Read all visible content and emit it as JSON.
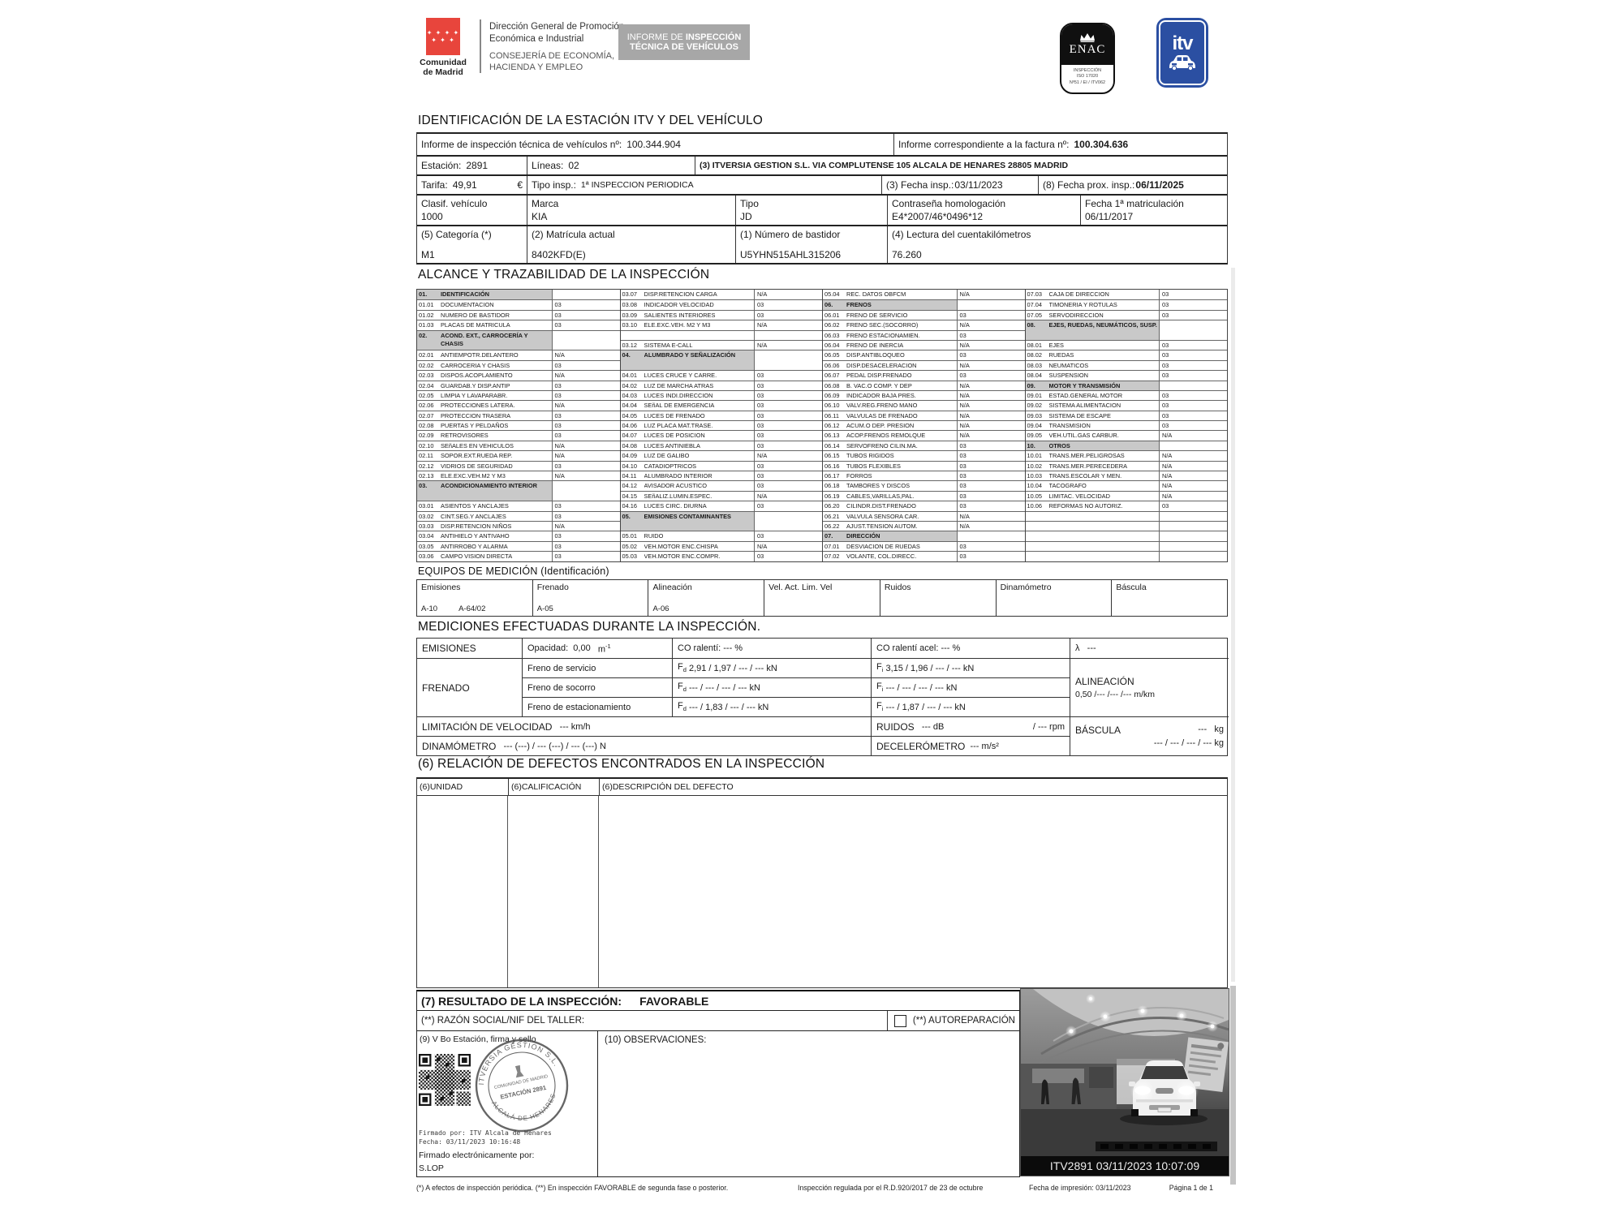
{
  "colors": {
    "accent_red": "#e8453c",
    "itv_blue": "#2b4fa2",
    "banner_gray": "#a7a7a7",
    "header_cell_gray": "#c9c9c9",
    "photo_caption_bg": "#0b0b0b"
  },
  "header": {
    "region_name_1": "Comunidad",
    "region_name_2": "de Madrid",
    "stars_row1": "✦ ✦ ✦ ✦",
    "stars_row2": "✦ ✦ ✦",
    "org_line1": "Dirección General de Promoción",
    "org_line2": "Económica e Industrial",
    "org_line3": "CONSEJERÍA DE ECONOMÍA,",
    "org_line4": "HACIENDA Y EMPLEO",
    "banner_l1a": "INFORME DE ",
    "banner_l1b": "INSPECCIÓN",
    "banner_l2": "TÉCNICA DE VEHÍCULOS",
    "enac_name": "ENAC",
    "enac_sub1": "INSPECCIÓN",
    "enac_sub2": "ISO 17020",
    "enac_sub3": "Nº51 / EI / ITV062",
    "itv_label": "itv"
  },
  "identificacion": {
    "title": "IDENTIFICACIÓN DE LA ESTACIÓN ITV Y DEL VEHÍCULO",
    "informe_label": "Informe de inspección técnica de vehículos nº:",
    "informe_value": "100.344.904",
    "factura_label": "Informe correspondiente a la factura nº:",
    "factura_value": "100.304.636",
    "estacion_label": "Estación:",
    "estacion_value": "2891",
    "lineas_label": "Líneas:",
    "lineas_value": "02",
    "itv_line": "(3) ITVERSIA GESTION S.L. VIA COMPLUTENSE 105 ALCALA DE HENARES 28805 MADRID",
    "tarifa_label": "Tarifa:",
    "tarifa_value": "49,91",
    "tarifa_currency": "€",
    "tipo_label": "Tipo insp.:",
    "tipo_value": "1ª INSPECCION PERIODICA",
    "fecha_label": "(3) Fecha insp.:",
    "fecha_value": "03/11/2023",
    "fecha_prox_label": "(8) Fecha prox. insp.:",
    "fecha_prox_value": "06/11/2025",
    "clasif_label": "Clasif. vehículo",
    "clasif_value": "1000",
    "marca_label": "Marca",
    "marca_value": "KIA",
    "tipo_veh_label": "Tipo",
    "tipo_veh_value": "JD",
    "contrasena_label": "Contraseña homologación",
    "contrasena_value": "E4*2007/46*0496*12",
    "matricula1_label": "Fecha 1ª matriculación",
    "matricula1_value": "06/11/2017",
    "categoria_label": "(5) Categoría (*)",
    "categoria_value": "M1",
    "matricula_label": "(2) Matrícula actual",
    "matricula_value": "8402KFD(E)",
    "bastidor_label": "(1) Número de bastidor",
    "bastidor_value": "U5YHN515AHL315206",
    "cuentakm_label": "(4) Lectura del cuentakilómetros",
    "cuentakm_value": "76.260"
  },
  "alcance": {
    "title": "ALCANCE Y TRAZABILIDAD DE LA INSPECCIÓN",
    "columns": [
      [
        {
          "c": "01.",
          "l": "IDENTIFICACIÓN",
          "h": true
        },
        {
          "c": "01.01",
          "l": "DOCUMENTACION",
          "v": "03"
        },
        {
          "c": "01.02",
          "l": "NUMERO DE BASTIDOR",
          "v": "03"
        },
        {
          "c": "01.03",
          "l": "PLACAS DE MATRICULA",
          "v": "03"
        },
        {
          "c": "02.",
          "l": "ACOND. EXT., CARROCERÍA Y CHASIS",
          "h": true,
          "tall": true
        },
        {
          "c": "02.01",
          "l": "ANTIEMPOTR.DELANTERO",
          "v": "N/A"
        },
        {
          "c": "02.02",
          "l": "CARROCERIA Y CHASIS",
          "v": "03"
        },
        {
          "c": "02.03",
          "l": "DISPOS.ACOPLAMIENTO",
          "v": "N/A"
        },
        {
          "c": "02.04",
          "l": "GUARDAB.Y DISP.ANTIP",
          "v": "03"
        },
        {
          "c": "02.05",
          "l": "LIMPIA Y LAVAPARABR.",
          "v": "03"
        },
        {
          "c": "02.06",
          "l": "PROTECCIONES LATERA.",
          "v": "N/A"
        },
        {
          "c": "02.07",
          "l": "PROTECCION TRASERA",
          "v": "03"
        },
        {
          "c": "02.08",
          "l": "PUERTAS Y PELDAÑOS",
          "v": "03"
        },
        {
          "c": "02.09",
          "l": "RETROVISORES",
          "v": "03"
        },
        {
          "c": "02.10",
          "l": "SEñALES EN VEHICULOS",
          "v": "N/A"
        },
        {
          "c": "02.11",
          "l": "SOPOR.EXT.RUEDA REP.",
          "v": "N/A"
        },
        {
          "c": "02.12",
          "l": "VIDRIOS DE SEGURIDAD",
          "v": "03"
        },
        {
          "c": "02.13",
          "l": "ELE.EXC.VEH.M2 Y M3",
          "v": "N/A"
        },
        {
          "c": "03.",
          "l": "ACONDICIONAMIENTO INTERIOR",
          "h": true,
          "tall": true
        },
        {
          "c": "03.01",
          "l": "ASIENTOS Y ANCLAJES",
          "v": "03"
        },
        {
          "c": "03.02",
          "l": "CINT.SEG.Y ANCLAJES",
          "v": "03"
        },
        {
          "c": "03.03",
          "l": "DISP.RETENCION NIÑOS",
          "v": "N/A"
        },
        {
          "c": "03.04",
          "l": "ANTIHIELO Y ANTIVAHO",
          "v": "03"
        },
        {
          "c": "03.05",
          "l": "ANTIRROBO Y ALARMA",
          "v": "03"
        },
        {
          "c": "03.06",
          "l": "CAMPO VISION DIRECTA",
          "v": "03"
        }
      ],
      [
        {
          "c": "03.07",
          "l": "DISP.RETENCION CARGA",
          "v": "N/A"
        },
        {
          "c": "03.08",
          "l": "INDICADOR VELOCIDAD",
          "v": "03"
        },
        {
          "c": "03.09",
          "l": "SALIENTES INTERIORES",
          "v": "03"
        },
        {
          "c": "03.10",
          "l": "ELE.EXC.VEH. M2 Y M3",
          "v": "N/A"
        },
        {},
        {
          "c": "03.12",
          "l": "SISTEMA E-CALL",
          "v": "N/A"
        },
        {
          "c": "04.",
          "l": "ALUMBRADO Y SEÑALIZACIÓN",
          "h": true,
          "tall": true
        },
        {
          "c": "04.01",
          "l": "LUCES CRUCE Y CARRE.",
          "v": "03"
        },
        {
          "c": "04.02",
          "l": "LUZ DE MARCHA ATRAS",
          "v": "03"
        },
        {
          "c": "04.03",
          "l": "LUCES INDI.DIRECCION",
          "v": "03"
        },
        {
          "c": "04.04",
          "l": "SEñAL DE EMERGENCIA",
          "v": "03"
        },
        {
          "c": "04.05",
          "l": "LUCES DE FRENADO",
          "v": "03"
        },
        {
          "c": "04.06",
          "l": "LUZ PLACA MAT.TRASE.",
          "v": "03"
        },
        {
          "c": "04.07",
          "l": "LUCES DE POSICION",
          "v": "03"
        },
        {
          "c": "04.08",
          "l": "LUCES ANTINIEBLA",
          "v": "03"
        },
        {
          "c": "04.09",
          "l": "LUZ DE GALIBO",
          "v": "N/A"
        },
        {
          "c": "04.10",
          "l": "CATADIOPTRICOS",
          "v": "03"
        },
        {
          "c": "04.11",
          "l": "ALUMBRADO INTERIOR",
          "v": "03"
        },
        {
          "c": "04.12",
          "l": "AVISADOR ACUSTICO",
          "v": "03"
        },
        {
          "c": "04.15",
          "l": "SEñALIZ.LUMIN.ESPEC.",
          "v": "N/A"
        },
        {
          "c": "04.16",
          "l": "LUCES CIRC. DIURNA",
          "v": "03"
        },
        {
          "c": "05.",
          "l": "EMISIONES CONTAMINANTES",
          "h": true,
          "tall": true
        },
        {
          "c": "05.01",
          "l": "RUIDO",
          "v": "03"
        },
        {
          "c": "05.02",
          "l": "VEH.MOTOR ENC.CHISPA",
          "v": "N/A"
        },
        {
          "c": "05.03",
          "l": "VEH.MOTOR ENC.COMPR.",
          "v": "03"
        }
      ],
      [
        {
          "c": "05.04",
          "l": "REC. DATOS OBFCM",
          "v": "N/A"
        },
        {
          "c": "06.",
          "l": "FRENOS",
          "h": true
        },
        {
          "c": "06.01",
          "l": "FRENO DE SERVICIO",
          "v": "03"
        },
        {
          "c": "06.02",
          "l": "FRENO SEC.(SOCORRO)",
          "v": "N/A"
        },
        {
          "c": "06.03",
          "l": "FRENO ESTACIONAMIEN.",
          "v": "03"
        },
        {
          "c": "06.04",
          "l": "FRENO DE INERCIA",
          "v": "N/A"
        },
        {
          "c": "06.05",
          "l": "DISP.ANTIBLOQUEO",
          "v": "03"
        },
        {
          "c": "06.06",
          "l": "DISP.DESACELERACION",
          "v": "N/A"
        },
        {
          "c": "06.07",
          "l": "PEDAL DISP.FRENADO",
          "v": "03"
        },
        {
          "c": "06.08",
          "l": "B. VAC.O COMP. Y DEP",
          "v": "N/A"
        },
        {
          "c": "06.09",
          "l": "INDICADOR BAJA PRES.",
          "v": "N/A"
        },
        {
          "c": "06.10",
          "l": "VALV.REG.FRENO MANO",
          "v": "N/A"
        },
        {
          "c": "06.11",
          "l": "VALVULAS DE FRENADO",
          "v": "N/A"
        },
        {
          "c": "06.12",
          "l": "ACUM.O DEP. PRESION",
          "v": "N/A"
        },
        {
          "c": "06.13",
          "l": "ACOP.FRENOS REMOLQUE",
          "v": "N/A"
        },
        {
          "c": "06.14",
          "l": "SERVOFRENO CILIN.MA.",
          "v": "03"
        },
        {
          "c": "06.15",
          "l": "TUBOS RIGIDOS",
          "v": "03"
        },
        {
          "c": "06.16",
          "l": "TUBOS FLEXIBLES",
          "v": "03"
        },
        {
          "c": "06.17",
          "l": "FORROS",
          "v": "03"
        },
        {
          "c": "06.18",
          "l": "TAMBORES Y DISCOS",
          "v": "03"
        },
        {
          "c": "06.19",
          "l": "CABLES,VARILLAS,PAL.",
          "v": "03"
        },
        {
          "c": "06.20",
          "l": "CILINDR.DIST.FRENADO",
          "v": "03"
        },
        {
          "c": "06.21",
          "l": "VALVULA SENSORA CAR.",
          "v": "N/A"
        },
        {
          "c": "06.22",
          "l": "AJUST.TENSION AUTOM.",
          "v": "N/A"
        },
        {
          "c": "07.",
          "l": "DIRECCIÓN",
          "h": true
        },
        {
          "c": "07.01",
          "l": "DESVIACION DE RUEDAS",
          "v": "03"
        },
        {
          "c": "07.02",
          "l": "VOLANTE, COL.DIRECC.",
          "v": "03"
        }
      ],
      [
        {
          "c": "07.03",
          "l": "CAJA DE DIRECCION",
          "v": "03"
        },
        {
          "c": "07.04",
          "l": "TIMONERIA Y ROTULAS",
          "v": "03"
        },
        {
          "c": "07.05",
          "l": "SERVODIRECCION",
          "v": "03"
        },
        {
          "c": "08.",
          "l": "EJES, RUEDAS, NEUMÁTICOS, SUSP.",
          "h": true,
          "tall": true
        },
        {
          "c": "08.01",
          "l": "EJES",
          "v": "03"
        },
        {
          "c": "08.02",
          "l": "RUEDAS",
          "v": "03"
        },
        {
          "c": "08.03",
          "l": "NEUMATICOS",
          "v": "03"
        },
        {
          "c": "08.04",
          "l": "SUSPENSION",
          "v": "03"
        },
        {
          "c": "09.",
          "l": "MOTOR Y TRANSMISIÓN",
          "h": true
        },
        {
          "c": "09.01",
          "l": "ESTAD.GENERAL MOTOR",
          "v": "03"
        },
        {
          "c": "09.02",
          "l": "SISTEMA ALIMENTACION",
          "v": "03"
        },
        {
          "c": "09.03",
          "l": "SISTEMA DE ESCAPE",
          "v": "03"
        },
        {
          "c": "09.04",
          "l": "TRANSMISION",
          "v": "03"
        },
        {
          "c": "09.05",
          "l": "VEH.UTIL.GAS CARBUR.",
          "v": "N/A"
        },
        {
          "c": "10.",
          "l": "OTROS",
          "h": true
        },
        {
          "c": "10.01",
          "l": "TRANS.MER.PELIGROSAS",
          "v": "N/A"
        },
        {
          "c": "10.02",
          "l": "TRANS.MER.PERECEDERA",
          "v": "N/A"
        },
        {
          "c": "10.03",
          "l": "TRANS.ESCOLAR Y MEN.",
          "v": "N/A"
        },
        {
          "c": "10.04",
          "l": "TACOGRAFO",
          "v": "N/A"
        },
        {
          "c": "10.05",
          "l": "LIMITAC. VELOCIDAD",
          "v": "N/A"
        },
        {
          "c": "10.06",
          "l": "REFORMAS NO AUTORIZ.",
          "v": "03"
        },
        {},
        {},
        {},
        {},
        {}
      ]
    ]
  },
  "equipos": {
    "title": "EQUIPOS DE MEDICIÓN (Identificación)",
    "cols": [
      {
        "h": "Emisiones",
        "v1": "A-10",
        "v2": "A-64/02"
      },
      {
        "h": "Frenado",
        "v1": "A-05"
      },
      {
        "h": "Alineación",
        "v1": "A-06"
      },
      {
        "h": "Vel. Act. Lim. Vel"
      },
      {
        "h": "Ruidos"
      },
      {
        "h": "Dinamómetro"
      },
      {
        "h": "Báscula"
      }
    ]
  },
  "mediciones": {
    "title": "MEDICIONES EFECTUADAS DURANTE LA INSPECCIÓN.",
    "emisiones_label": "EMISIONES",
    "opacidad_label": "Opacidad:",
    "opacidad_value": "0,00",
    "opacidad_unit": "m",
    "opacidad_unit_sup": "-1",
    "co_ralenti": "CO ralentí: --- %",
    "co_ralenti_acel": "CO ralentí acel: --- %",
    "lambda_symbol": "λ",
    "lambda_value": "---",
    "frenado_label": "FRENADO",
    "freno_servicio": "Freno de servicio",
    "freno_socorro": "Freno de socorro",
    "freno_estacionamiento": "Freno de estacionamiento",
    "f_symbol": "F",
    "fd_sub": "d",
    "fi_sub": "i",
    "fd_servicio": "2,91 / 1,97 / --- / --- kN",
    "fi_servicio": "3,15 / 1,96 / --- / --- kN",
    "fd_socorro": "--- / --- / --- / --- kN",
    "fi_socorro": "--- / --- / --- / --- kN",
    "fd_estacionamiento": "--- / 1,83 / --- / --- kN",
    "fi_estacionamiento": "--- / 1,87 / --- / --- kN",
    "alineacion_label": "ALINEACIÓN",
    "alineacion_value": "0,50 /--- /--- /--- m/km",
    "limitacion_label": "LIMITACIÓN DE VELOCIDAD",
    "limitacion_value": "--- km/h",
    "ruidos_label": "RUIDOS",
    "ruidos_db": "--- dB",
    "ruidos_rpm": "/ --- rpm",
    "bascula_label": "BÁSCULA",
    "bascula_value1": "---",
    "bascula_unit": "kg",
    "bascula_value2": "--- / --- / --- / --- kg",
    "dinamometro_label": "DINAMÓMETRO",
    "dinamometro_value": "--- (---) / --- (---) / --- (---) N",
    "decelerometro_label": "DECELERÓMETRO",
    "decelerometro_value": "--- m/s²"
  },
  "defectos": {
    "title": "(6) RELACIÓN DE DEFECTOS ENCONTRADOS EN LA INSPECCIÓN",
    "col1": "(6)UNIDAD",
    "col2": "(6)CALIFICACIÓN",
    "col3": "(6)DESCRIPCIÓN DEL DEFECTO"
  },
  "resultado": {
    "title": "(7) RESULTADO DE LA INSPECCIÓN:",
    "value": "FAVORABLE",
    "taller_label": "(**) RAZÓN SOCIAL/NIF DEL TALLER:",
    "autoreparacion_label": "(**) AUTOREPARACIÓN",
    "vbo_label": "(9) V Bo Estación, firma y sello",
    "observaciones_label": "(10) OBSERVACIONES:",
    "firmado_linea1": "Firmado por: ITV Alcala de Henares",
    "firmado_linea2": "Fecha: 03/11/2023 10:16:48",
    "firmado_e_label": "Firmado electrónicamente por:",
    "firmado_e_nombre": "S.LOP"
  },
  "sello": {
    "arc_top": "ITVERSIA GESTION S.L.",
    "center1": "COMUNIDAD DE MADRID",
    "center2": "ESTACIÓN 2891",
    "arc_bottom": "ALCALÁ DE HENARES"
  },
  "foto": {
    "caption": "ITV2891 03/11/2023 10:07:09"
  },
  "footer": {
    "left": "(*) A efectos de inspección periódica. (**) En inspección FAVORABLE de segunda fase o posterior.",
    "center": "Inspección regulada por el R.D.920/2017 de 23 de octubre",
    "right1": "Fecha de impresión: 03/11/2023",
    "right2": "Página 1 de 1"
  }
}
